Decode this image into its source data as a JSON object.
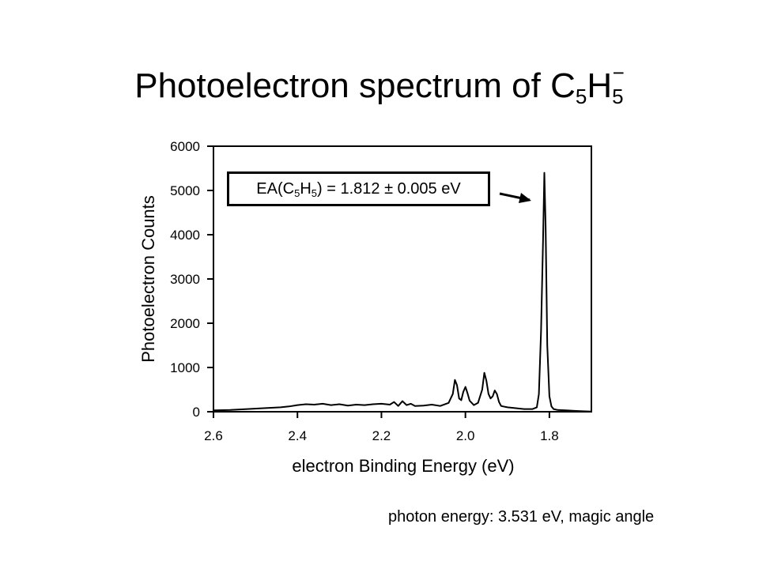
{
  "slide": {
    "title_main": "Photoelectron spectrum of C",
    "title_sub1": "5",
    "title_mid": "H",
    "title_sub2": "5",
    "title_sup": "−",
    "footnote": "photon energy: 3.531 eV, magic angle"
  },
  "annotation": {
    "pre": "EA(C",
    "sub1": "5",
    "mid": "H",
    "sub2": "5",
    "post": ") = 1.812 ± 0.005 eV"
  },
  "chart_data": {
    "type": "line",
    "xlabel": "electron Binding Energy (eV)",
    "ylabel": "Photoelectron Counts",
    "xlim": [
      2.6,
      1.7
    ],
    "ylim": [
      0,
      6000
    ],
    "x_reversed": true,
    "xticks": [
      2.6,
      2.4,
      2.2,
      2.0,
      1.8
    ],
    "xtick_labels": [
      "2.6",
      "2.4",
      "2.2",
      "2.0",
      "1.8"
    ],
    "yticks": [
      0,
      1000,
      2000,
      3000,
      4000,
      5000,
      6000
    ],
    "ytick_labels": [
      "0",
      "1000",
      "2000",
      "3000",
      "4000",
      "5000",
      "6000"
    ],
    "grid": false,
    "line_color": "#000000",
    "series": [
      {
        "x": [
          2.6,
          2.56,
          2.52,
          2.48,
          2.44,
          2.42,
          2.4,
          2.38,
          2.36,
          2.34,
          2.32,
          2.3,
          2.28,
          2.26,
          2.24,
          2.22,
          2.2,
          2.18,
          2.17,
          2.16,
          2.15,
          2.14,
          2.13,
          2.12,
          2.1,
          2.08,
          2.06,
          2.04,
          2.03,
          2.025,
          2.02,
          2.015,
          2.01,
          2.005,
          2.0,
          1.995,
          1.99,
          1.98,
          1.97,
          1.96,
          1.955,
          1.95,
          1.945,
          1.94,
          1.935,
          1.93,
          1.925,
          1.92,
          1.915,
          1.91,
          1.9,
          1.88,
          1.86,
          1.84,
          1.83,
          1.825,
          1.82,
          1.815,
          1.812,
          1.809,
          1.805,
          1.8,
          1.795,
          1.79,
          1.78,
          1.76,
          1.74,
          1.72,
          1.7
        ],
        "y": [
          30,
          40,
          60,
          80,
          100,
          120,
          150,
          170,
          160,
          180,
          150,
          170,
          140,
          160,
          150,
          170,
          180,
          160,
          220,
          130,
          240,
          150,
          180,
          130,
          140,
          160,
          130,
          200,
          400,
          720,
          600,
          300,
          260,
          450,
          560,
          420,
          250,
          150,
          200,
          500,
          880,
          700,
          400,
          300,
          350,
          480,
          400,
          220,
          130,
          120,
          100,
          80,
          60,
          60,
          100,
          400,
          1800,
          3900,
          5400,
          4200,
          1500,
          350,
          120,
          60,
          40,
          30,
          20,
          10,
          5
        ]
      }
    ]
  }
}
